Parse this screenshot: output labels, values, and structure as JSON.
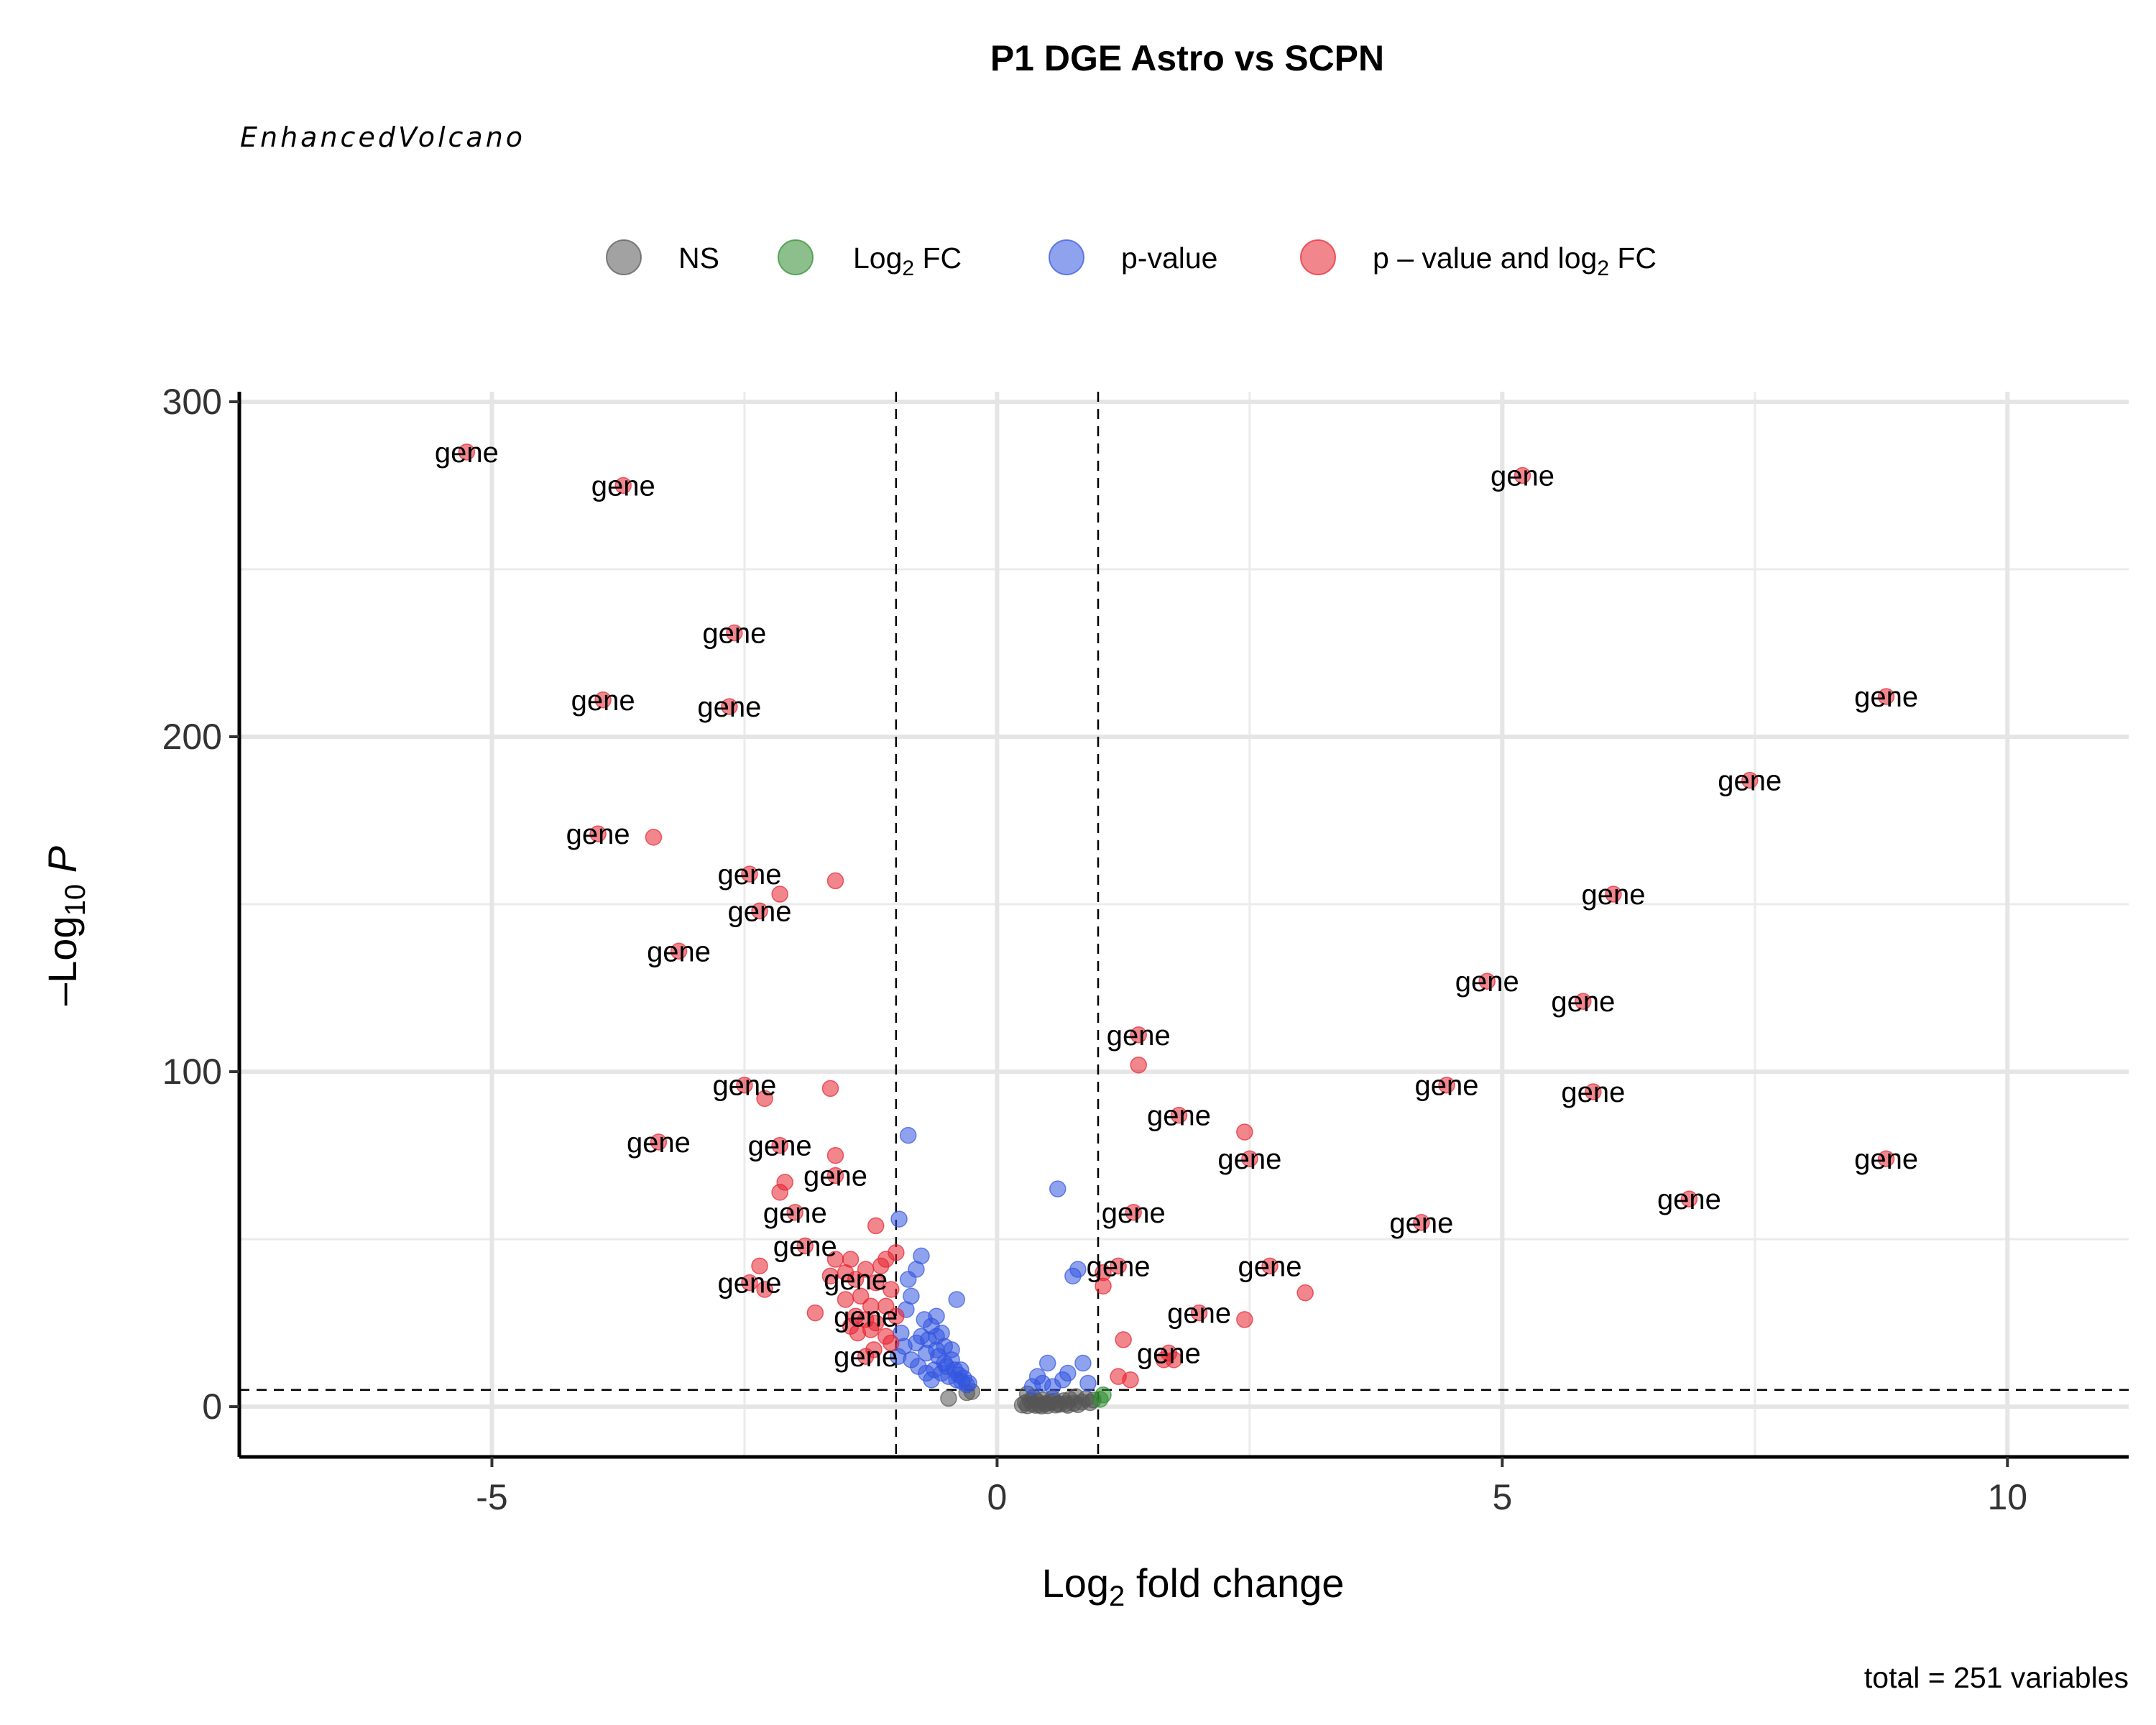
{
  "chart_data": {
    "type": "scatter",
    "title": "P1 DGE Astro vs SCPN",
    "subtitle": "EnhancedVolcano",
    "caption": "total = 251 variables",
    "xlabel": "Log2 fold change",
    "ylabel": "-Log10 P",
    "xlim": [
      -7.5,
      11.2
    ],
    "ylim": [
      -15,
      303
    ],
    "xticks": [
      "-5",
      "0",
      "5",
      "10"
    ],
    "yticks": [
      "0",
      "100",
      "200",
      "300"
    ],
    "grid": true,
    "legend_position": "top",
    "thresholds": {
      "log2fc": [
        -1,
        1
      ],
      "neg_log10_p": 5
    },
    "legend": [
      {
        "key": "NS",
        "label": "NS",
        "color": "#555555"
      },
      {
        "key": "FC",
        "label": "Log",
        "sub": "2",
        "suffix": " FC",
        "color": "#2e8b2e"
      },
      {
        "key": "P",
        "label": "p-value",
        "color": "#3355e0"
      },
      {
        "key": "FC_P",
        "label": "p – value and log",
        "sub": "2",
        "suffix": " FC",
        "color": "#e8222f"
      }
    ],
    "point_label": "gene",
    "series": [
      {
        "name": "NS",
        "color": "#555555",
        "points": [
          [
            -0.48,
            2.5
          ],
          [
            -0.3,
            4.2
          ],
          [
            -0.25,
            4.5
          ],
          [
            0.25,
            0.5
          ],
          [
            0.28,
            1.2
          ],
          [
            0.3,
            0.3
          ],
          [
            0.33,
            1.8
          ],
          [
            0.35,
            0.8
          ],
          [
            0.38,
            0.4
          ],
          [
            0.4,
            1.5
          ],
          [
            0.42,
            0.6
          ],
          [
            0.45,
            2.0
          ],
          [
            0.48,
            0.9
          ],
          [
            0.5,
            0.3
          ],
          [
            0.52,
            1.2
          ],
          [
            0.55,
            2.5
          ],
          [
            0.58,
            0.5
          ],
          [
            0.6,
            1.0
          ],
          [
            0.62,
            0.7
          ],
          [
            0.66,
            1.8
          ],
          [
            0.7,
            0.4
          ],
          [
            0.72,
            2.2
          ],
          [
            0.76,
            1.0
          ],
          [
            0.8,
            0.6
          ],
          [
            0.84,
            1.4
          ],
          [
            0.88,
            2.4
          ],
          [
            0.3,
            3.8
          ],
          [
            0.36,
            2.8
          ],
          [
            0.44,
            0.2
          ],
          [
            0.56,
            1.6
          ],
          [
            0.68,
            0.9
          ],
          [
            0.78,
            3.0
          ],
          [
            0.92,
            1.2
          ],
          [
            0.95,
            2.0
          ]
        ]
      },
      {
        "name": "Log2 FC",
        "color": "#2e8b2e",
        "points": [
          [
            1.05,
            3.5
          ],
          [
            1.02,
            2.2
          ]
        ]
      },
      {
        "name": "p-value",
        "color": "#3355e0",
        "points": [
          [
            -0.88,
            81
          ],
          [
            -0.97,
            56
          ],
          [
            -0.75,
            45
          ],
          [
            -0.8,
            41
          ],
          [
            -0.88,
            38
          ],
          [
            -0.4,
            32
          ],
          [
            -0.85,
            33
          ],
          [
            -0.6,
            27
          ],
          [
            -0.72,
            26
          ],
          [
            -0.65,
            24
          ],
          [
            -0.9,
            29
          ],
          [
            -0.55,
            22
          ],
          [
            -0.68,
            20
          ],
          [
            -0.75,
            21
          ],
          [
            -0.8,
            19
          ],
          [
            -0.52,
            18
          ],
          [
            -0.6,
            17
          ],
          [
            -0.7,
            16
          ],
          [
            -0.58,
            15
          ],
          [
            -0.45,
            14
          ],
          [
            -0.5,
            12
          ],
          [
            -0.62,
            11
          ],
          [
            -0.55,
            10
          ],
          [
            -0.48,
            9
          ],
          [
            -0.4,
            8
          ],
          [
            -0.35,
            7.5
          ],
          [
            -0.3,
            6.5
          ],
          [
            -0.42,
            11
          ],
          [
            -0.38,
            9.5
          ],
          [
            -0.33,
            8.5
          ],
          [
            -0.28,
            7
          ],
          [
            -0.95,
            22
          ],
          [
            -0.92,
            18
          ],
          [
            -0.85,
            14
          ],
          [
            -0.78,
            12
          ],
          [
            -0.7,
            10
          ],
          [
            -0.65,
            8
          ],
          [
            -0.98,
            15
          ],
          [
            -0.45,
            17
          ],
          [
            -0.52,
            13
          ],
          [
            -0.36,
            11
          ],
          [
            -0.6,
            21
          ],
          [
            0.6,
            65
          ],
          [
            0.8,
            41
          ],
          [
            0.75,
            39
          ],
          [
            0.85,
            13
          ],
          [
            0.5,
            13
          ],
          [
            0.4,
            9
          ],
          [
            0.45,
            7
          ],
          [
            0.55,
            6
          ],
          [
            0.65,
            8
          ],
          [
            0.7,
            10
          ],
          [
            0.9,
            7
          ],
          [
            0.35,
            6
          ]
        ]
      },
      {
        "name": "p – value and log2 FC",
        "color": "#e8222f",
        "points": [
          [
            -5.25,
            285
          ],
          [
            -3.7,
            275
          ],
          [
            -2.6,
            231
          ],
          [
            -3.9,
            211
          ],
          [
            -2.65,
            209
          ],
          [
            -3.4,
            170
          ],
          [
            -3.95,
            171
          ],
          [
            -2.45,
            159
          ],
          [
            -1.6,
            157
          ],
          [
            -2.15,
            153
          ],
          [
            -2.35,
            148
          ],
          [
            -3.15,
            136
          ],
          [
            -2.5,
            96
          ],
          [
            -1.65,
            95
          ],
          [
            -2.3,
            92
          ],
          [
            -3.35,
            79
          ],
          [
            -2.15,
            78
          ],
          [
            -1.6,
            75
          ],
          [
            -1.6,
            69
          ],
          [
            -2.1,
            67
          ],
          [
            -2.15,
            64
          ],
          [
            -2.0,
            58
          ],
          [
            -1.2,
            54
          ],
          [
            -1.0,
            46
          ],
          [
            -1.9,
            48
          ],
          [
            -1.6,
            44
          ],
          [
            -1.45,
            44
          ],
          [
            -1.1,
            44
          ],
          [
            -1.15,
            42
          ],
          [
            -2.35,
            42
          ],
          [
            -1.3,
            41
          ],
          [
            -1.5,
            40
          ],
          [
            -1.65,
            39
          ],
          [
            -1.4,
            38
          ],
          [
            -2.45,
            37
          ],
          [
            -1.2,
            37
          ],
          [
            -2.3,
            35
          ],
          [
            -1.05,
            35
          ],
          [
            -1.35,
            33
          ],
          [
            -1.5,
            32
          ],
          [
            -1.25,
            30
          ],
          [
            -1.1,
            30
          ],
          [
            -1.8,
            28
          ],
          [
            -1.4,
            27
          ],
          [
            -1.0,
            27
          ],
          [
            -1.3,
            26
          ],
          [
            -1.2,
            25
          ],
          [
            -1.45,
            24
          ],
          [
            -1.25,
            23
          ],
          [
            -1.38,
            22
          ],
          [
            -1.1,
            21
          ],
          [
            -1.05,
            19
          ],
          [
            -1.22,
            17
          ],
          [
            -1.3,
            15
          ],
          [
            5.2,
            278
          ],
          [
            8.8,
            212
          ],
          [
            7.45,
            187
          ],
          [
            6.1,
            153
          ],
          [
            4.85,
            127
          ],
          [
            5.8,
            121
          ],
          [
            1.4,
            111
          ],
          [
            1.4,
            102
          ],
          [
            4.45,
            96
          ],
          [
            5.9,
            94
          ],
          [
            1.8,
            87
          ],
          [
            2.45,
            82
          ],
          [
            8.8,
            74
          ],
          [
            2.5,
            74
          ],
          [
            6.85,
            62
          ],
          [
            1.35,
            58
          ],
          [
            4.2,
            55
          ],
          [
            2.7,
            42
          ],
          [
            1.2,
            42
          ],
          [
            1.05,
            40
          ],
          [
            1.05,
            36
          ],
          [
            3.05,
            34
          ],
          [
            2.0,
            28
          ],
          [
            2.45,
            26
          ],
          [
            1.25,
            20
          ],
          [
            1.7,
            16
          ],
          [
            1.65,
            14
          ],
          [
            1.75,
            14
          ],
          [
            1.2,
            9
          ],
          [
            1.32,
            8
          ]
        ]
      }
    ],
    "labeled_points": [
      [
        -5.25,
        285
      ],
      [
        -3.7,
        275
      ],
      [
        -2.6,
        231
      ],
      [
        -3.9,
        211
      ],
      [
        -2.65,
        209
      ],
      [
        -3.95,
        171
      ],
      [
        -2.45,
        159
      ],
      [
        -2.35,
        148
      ],
      [
        -3.15,
        136
      ],
      [
        -2.5,
        96
      ],
      [
        -3.35,
        79
      ],
      [
        -2.15,
        78
      ],
      [
        -1.6,
        69
      ],
      [
        -2.0,
        58
      ],
      [
        -1.9,
        48
      ],
      [
        -2.45,
        37
      ],
      [
        -1.4,
        38
      ],
      [
        -1.3,
        27
      ],
      [
        -1.3,
        15
      ],
      [
        5.2,
        278
      ],
      [
        8.8,
        212
      ],
      [
        7.45,
        187
      ],
      [
        6.1,
        153
      ],
      [
        4.85,
        127
      ],
      [
        5.8,
        121
      ],
      [
        1.4,
        111
      ],
      [
        4.45,
        96
      ],
      [
        5.9,
        94
      ],
      [
        1.8,
        87
      ],
      [
        2.5,
        74
      ],
      [
        8.8,
        74
      ],
      [
        6.85,
        62
      ],
      [
        1.35,
        58
      ],
      [
        4.2,
        55
      ],
      [
        1.2,
        42
      ],
      [
        2.7,
        42
      ],
      [
        2.0,
        28
      ],
      [
        1.7,
        16
      ]
    ]
  }
}
